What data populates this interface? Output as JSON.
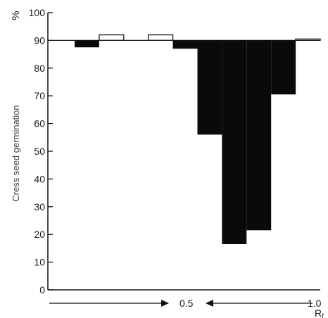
{
  "chart_data": {
    "type": "bar",
    "ylabel": "Cress seed germination",
    "yunit": "%",
    "ylim": [
      0,
      100
    ],
    "yticks": [
      0,
      10,
      20,
      30,
      40,
      50,
      60,
      70,
      80,
      90,
      100
    ],
    "control_value": 90,
    "x_start_label": "",
    "x_mid_label": "0.5",
    "x_end_label": "1.0",
    "x_axis_label": "R",
    "x_axis_label_sub": "f",
    "grid": false,
    "bars": [
      {
        "x0": 0.0,
        "x1": 0.1,
        "value": 87.5
      },
      {
        "x0": 0.1,
        "x1": 0.2,
        "value": 92
      },
      {
        "x0": 0.2,
        "x1": 0.3,
        "value": 90
      },
      {
        "x0": 0.3,
        "x1": 0.4,
        "value": 92
      },
      {
        "x0": 0.4,
        "x1": 0.5,
        "value": 87
      },
      {
        "x0": 0.5,
        "x1": 0.6,
        "value": 56
      },
      {
        "x0": 0.6,
        "x1": 0.7,
        "value": 16.5
      },
      {
        "x0": 0.7,
        "x1": 0.8,
        "value": 21.5
      },
      {
        "x0": 0.8,
        "x1": 0.9,
        "value": 70.5
      },
      {
        "x0": 0.9,
        "x1": 1.0,
        "value": 90.5
      }
    ]
  }
}
